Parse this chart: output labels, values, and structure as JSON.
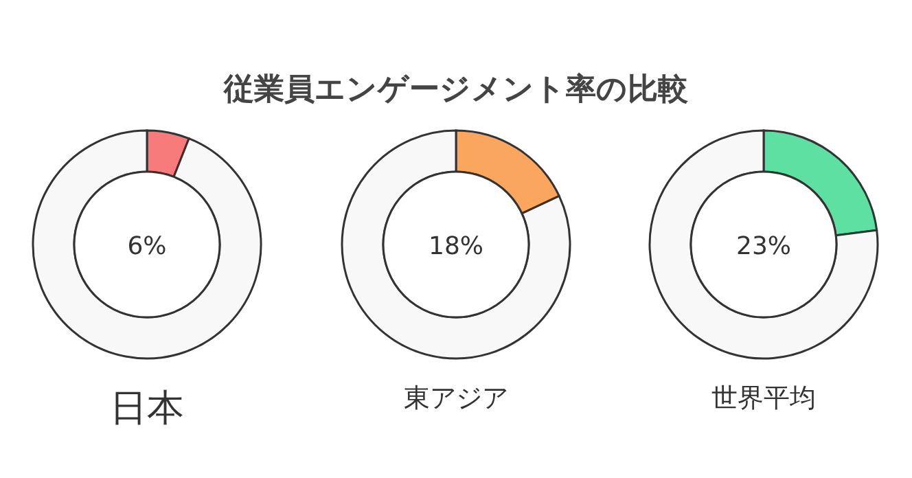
{
  "chart_data": [
    {
      "type": "other",
      "title": "従業員エンゲージメント率の比較"
    },
    {
      "type": "donut",
      "xlabel": "日本",
      "categories": [
        null,
        null
      ],
      "values": [
        6,
        94
      ],
      "colors": [
        "#f77b7b",
        "#f8f8f8"
      ],
      "annotations": [
        "6%"
      ]
    },
    {
      "type": "donut",
      "xlabel": "東アジア",
      "categories": [
        null,
        null
      ],
      "values": [
        18,
        82
      ],
      "colors": [
        "#fba65e",
        "#f8f8f8"
      ],
      "annotations": [
        "18%"
      ]
    },
    {
      "type": "donut",
      "xlabel": "世界平均",
      "categories": [
        null,
        null
      ],
      "values": [
        23,
        77
      ],
      "colors": [
        "#5ee0a2",
        "#f8f8f8"
      ],
      "annotations": [
        "23%"
      ]
    }
  ]
}
